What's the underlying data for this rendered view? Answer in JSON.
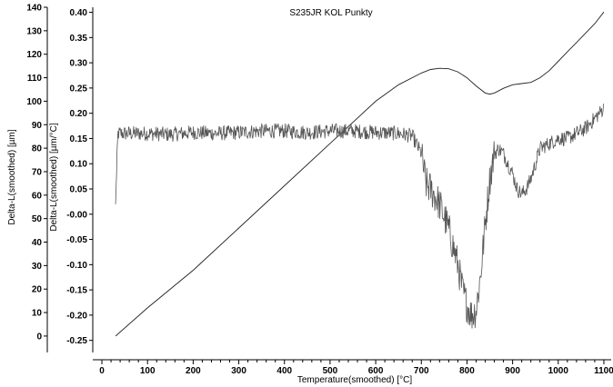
{
  "chart_data": {
    "type": "line",
    "title": "S235JR KOL Punkty",
    "xlabel": "Temperature(smoothed)  [°C]",
    "xlim": [
      -20,
      1120
    ],
    "x_ticks": [
      0,
      100,
      200,
      300,
      400,
      500,
      600,
      700,
      800,
      900,
      1000,
      1100
    ],
    "axes": {
      "left": {
        "label": "Delta-L(smoothed)  [µm]",
        "ylim": [
          -7,
          140
        ],
        "ticks": [
          0,
          10,
          20,
          30,
          40,
          50,
          60,
          70,
          80,
          90,
          100,
          110,
          120,
          130,
          140
        ]
      },
      "right": {
        "label": "Delta-L(smoothed)  [µm/°C]",
        "ylim": [
          -0.274,
          0.41
        ],
        "ticks": [
          "-0.25",
          "-0.20",
          "-0.15",
          "-0.10",
          "-0.05",
          "-0.00",
          "0.05",
          "0.10",
          "0.15",
          "0.20",
          "0.25",
          "0.30",
          "0.35",
          "0.40"
        ]
      }
    },
    "series": [
      {
        "axis": "left",
        "x": [
          30,
          100,
          200,
          300,
          400,
          500,
          600,
          650,
          700,
          720,
          740,
          760,
          780,
          800,
          820,
          840,
          850,
          860,
          880,
          900,
          920,
          940,
          960,
          980,
          1000,
          1020,
          1040,
          1060,
          1080,
          1100
        ],
        "y": [
          0,
          12,
          28,
          46,
          64,
          82,
          100,
          107,
          112,
          113.5,
          114,
          113.8,
          112.5,
          110,
          106.5,
          103.5,
          103,
          103.5,
          105.5,
          107,
          107.5,
          108,
          110,
          113,
          117,
          121,
          125,
          129,
          133,
          138
        ]
      },
      {
        "axis": "right",
        "x": [
          30,
          35,
          50,
          100,
          150,
          200,
          250,
          300,
          350,
          400,
          450,
          500,
          550,
          600,
          650,
          680,
          700,
          710,
          720,
          740,
          760,
          780,
          790,
          800,
          810,
          820,
          830,
          840,
          850,
          860,
          870,
          880,
          890,
          900,
          910,
          920,
          930,
          940,
          950,
          960,
          980,
          1000,
          1020,
          1040,
          1060,
          1080,
          1100
        ],
        "y": [
          0.02,
          0.16,
          0.16,
          0.16,
          0.158,
          0.162,
          0.16,
          0.162,
          0.165,
          0.165,
          0.162,
          0.165,
          0.165,
          0.162,
          0.16,
          0.155,
          0.12,
          0.06,
          0.05,
          0.02,
          -0.03,
          -0.1,
          -0.15,
          -0.18,
          -0.2,
          -0.19,
          -0.12,
          -0.02,
          0.07,
          0.12,
          0.13,
          0.12,
          0.1,
          0.08,
          0.05,
          0.04,
          0.05,
          0.07,
          0.1,
          0.13,
          0.14,
          0.15,
          0.15,
          0.16,
          0.17,
          0.19,
          0.21
        ],
        "noisy": true
      }
    ]
  }
}
